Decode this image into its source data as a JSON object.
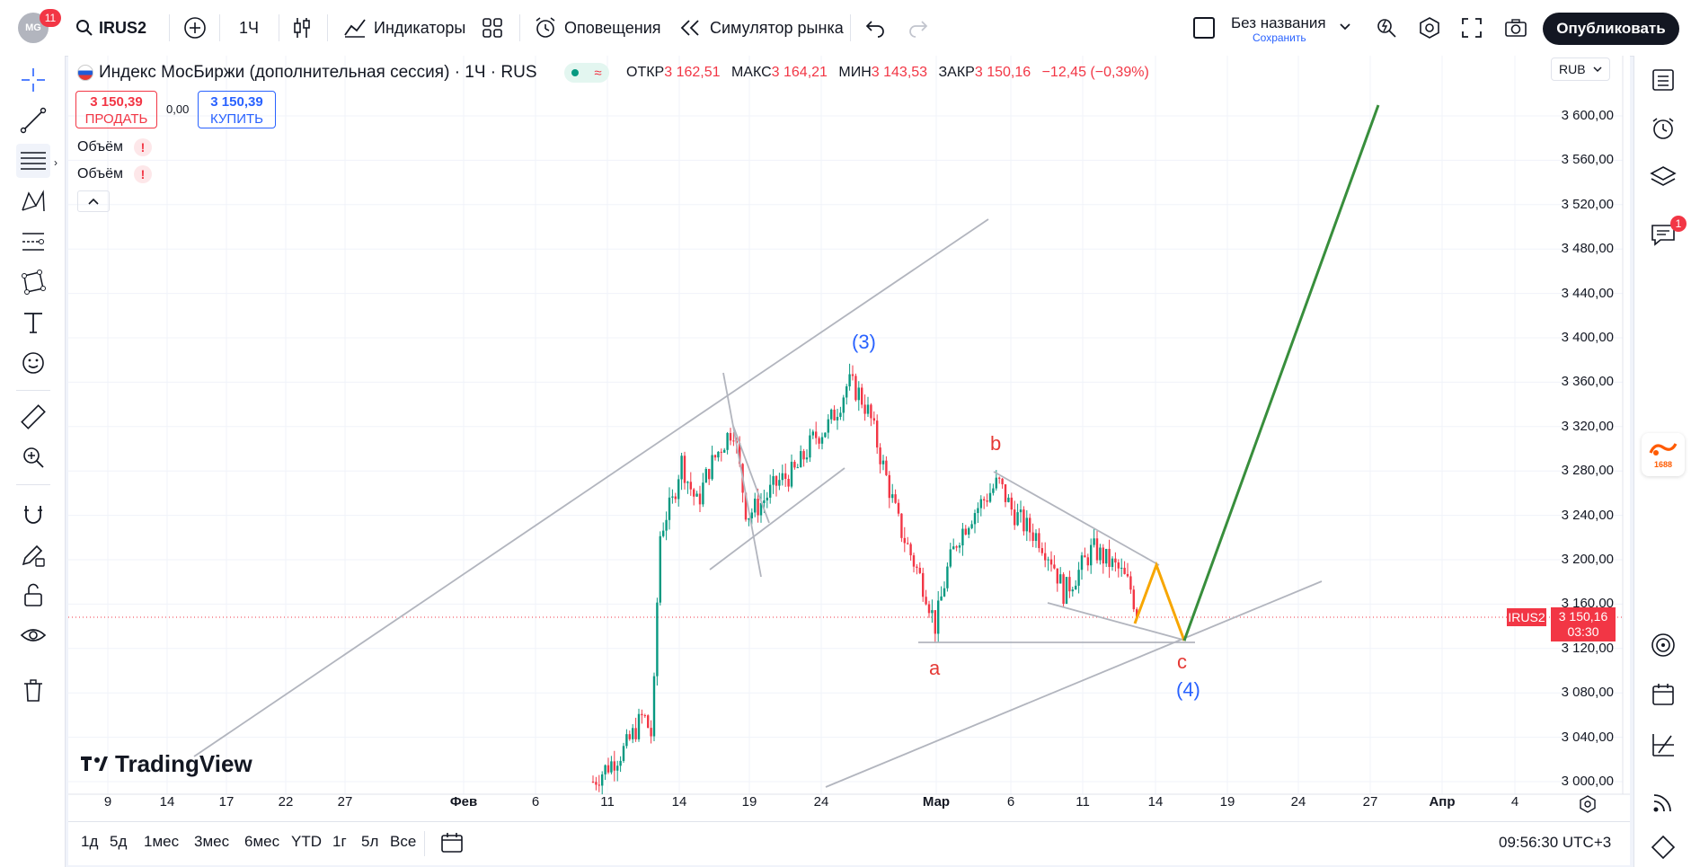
{
  "topbar": {
    "avatar_initials": "MG",
    "notif_count": "11",
    "symbol": "IRUS2",
    "interval": "1Ч",
    "indicators_label": "Индикаторы",
    "alerts_label": "Оповещения",
    "replay_label": "Симулятор рынка",
    "layout_name": "Без названия",
    "save_label": "Сохранить",
    "publish_label": "Опубликовать"
  },
  "legend": {
    "title": "Индекс МосБиржи (дополнительная сессия) · 1Ч · RUS",
    "open_k": "ОТКР",
    "open_v": "3 162,51",
    "high_k": "МАКС",
    "high_v": "3 164,21",
    "low_k": "МИН",
    "low_v": "3 143,53",
    "close_k": "ЗАКР",
    "close_v": "3 150,16",
    "change": "−12,45 (−0,39%)",
    "sell_price": "3 150,39",
    "sell_label": "ПРОДАТЬ",
    "spread": "0,00",
    "buy_price": "3 150,39",
    "buy_label": "КУПИТЬ",
    "indicator1": "Объём",
    "indicator2": "Объём",
    "currency": "RUB"
  },
  "chart_data": {
    "type": "candlestick",
    "symbol": "IRUS2",
    "price_axis": [
      "3 600,00",
      "3 560,00",
      "3 520,00",
      "3 480,00",
      "3 440,00",
      "3 400,00",
      "3 360,00",
      "3 320,00",
      "3 280,00",
      "3 240,00",
      "3 200,00",
      "3 160,00",
      "3 120,00",
      "3 080,00",
      "3 040,00",
      "3 000,00"
    ],
    "time_axis": [
      "9",
      "14",
      "17",
      "22",
      "27",
      "Фев",
      "6",
      "11",
      "14",
      "19",
      "24",
      "Мар",
      "6",
      "11",
      "14",
      "19",
      "24",
      "27",
      "Апр",
      "4"
    ],
    "last_price": "3 150,16",
    "countdown": "03:30",
    "wave_labels": [
      "(3)",
      "b",
      "a",
      "c",
      "(4)"
    ],
    "watermark": "TradingView"
  },
  "bottombar": {
    "timeframes": [
      "1д",
      "5д",
      "1мес",
      "3мес",
      "6мес",
      "YTD",
      "1г",
      "5л",
      "Все"
    ],
    "clock": "09:56:30 UTC+3"
  },
  "right_badges": {
    "chat_count": "1",
    "app_label": "1688"
  }
}
